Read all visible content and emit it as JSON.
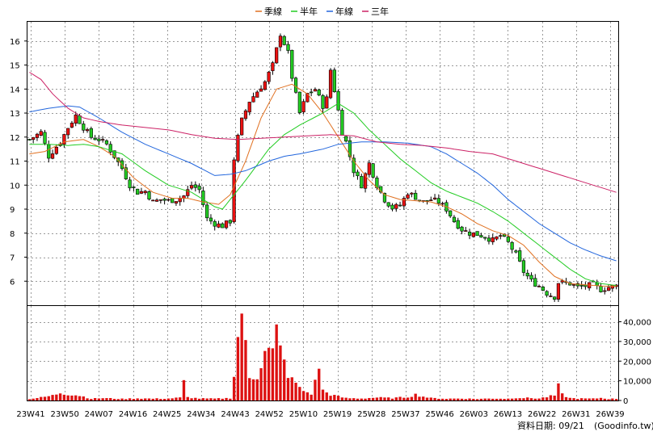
{
  "chart_data": {
    "type": "candlestick",
    "legend": [
      {
        "name": "季線",
        "color": "#e07020"
      },
      {
        "name": "半年",
        "color": "#22cc22"
      },
      {
        "name": "年線",
        "color": "#2266dd"
      },
      {
        "name": "三年",
        "color": "#cc2266"
      }
    ],
    "legend_placement": "top-center",
    "grid": true,
    "x_labels": [
      "23W41",
      "23W50",
      "24W07",
      "24W16",
      "24W25",
      "24W34",
      "24W43",
      "24W52",
      "25W10",
      "25W19",
      "25W28",
      "25W37",
      "25W46",
      "26W03",
      "26W13",
      "26W22",
      "26W31",
      "26W39"
    ],
    "price_axis": {
      "ticks": [
        "6",
        "7",
        "8",
        "9",
        "10",
        "11",
        "12",
        "13",
        "14",
        "15",
        "16"
      ],
      "ylim": [
        5,
        16.8
      ]
    },
    "volume_axis": {
      "ticks": [
        "0",
        "10,000",
        "20,000",
        "30,000",
        "40,000"
      ],
      "ylim": [
        0,
        48000
      ]
    },
    "series": [
      {
        "name": "季線",
        "anchors": [
          [
            0,
            11.3
          ],
          [
            4,
            11.4
          ],
          [
            9,
            11.8
          ],
          [
            14,
            11.9
          ],
          [
            18,
            11.6
          ],
          [
            22,
            11.2
          ],
          [
            27,
            10.3
          ],
          [
            32,
            9.7
          ],
          [
            37,
            9.45
          ],
          [
            41,
            9.45
          ],
          [
            45,
            9.3
          ],
          [
            49,
            9.2
          ],
          [
            52,
            9.6
          ],
          [
            56,
            11.0
          ],
          [
            60,
            12.8
          ],
          [
            64,
            14.0
          ],
          [
            68,
            14.2
          ],
          [
            72,
            13.8
          ],
          [
            76,
            13.0
          ],
          [
            80,
            12.0
          ],
          [
            84,
            11.0
          ],
          [
            88,
            10.2
          ],
          [
            92,
            9.6
          ],
          [
            96,
            9.4
          ],
          [
            100,
            9.35
          ],
          [
            104,
            9.3
          ],
          [
            108,
            9.1
          ],
          [
            112,
            8.8
          ],
          [
            116,
            8.4
          ],
          [
            120,
            8.1
          ],
          [
            124,
            7.9
          ],
          [
            128,
            7.5
          ],
          [
            132,
            6.8
          ],
          [
            136,
            6.2
          ],
          [
            140,
            5.9
          ],
          [
            144,
            5.85
          ],
          [
            148,
            5.8
          ],
          [
            152,
            5.78
          ]
        ]
      },
      {
        "name": "半年",
        "anchors": [
          [
            0,
            11.7
          ],
          [
            5,
            11.7
          ],
          [
            10,
            11.65
          ],
          [
            14,
            11.7
          ],
          [
            18,
            11.6
          ],
          [
            24,
            11.3
          ],
          [
            30,
            10.6
          ],
          [
            36,
            10.0
          ],
          [
            42,
            9.7
          ],
          [
            48,
            9.1
          ],
          [
            50,
            9.0
          ],
          [
            56,
            10.2
          ],
          [
            62,
            11.5
          ],
          [
            66,
            12.1
          ],
          [
            70,
            12.5
          ],
          [
            76,
            13.0
          ],
          [
            80,
            13.4
          ],
          [
            84,
            13.0
          ],
          [
            88,
            12.3
          ],
          [
            92,
            11.7
          ],
          [
            96,
            11.1
          ],
          [
            100,
            10.6
          ],
          [
            104,
            10.1
          ],
          [
            108,
            9.75
          ],
          [
            112,
            9.5
          ],
          [
            116,
            9.25
          ],
          [
            120,
            8.9
          ],
          [
            124,
            8.5
          ],
          [
            128,
            8.0
          ],
          [
            132,
            7.5
          ],
          [
            136,
            7.0
          ],
          [
            140,
            6.5
          ],
          [
            144,
            6.1
          ],
          [
            148,
            5.9
          ],
          [
            152,
            5.82
          ]
        ]
      },
      {
        "name": "年線",
        "anchors": [
          [
            0,
            13.05
          ],
          [
            5,
            13.2
          ],
          [
            10,
            13.3
          ],
          [
            13,
            13.25
          ],
          [
            18,
            12.8
          ],
          [
            24,
            12.2
          ],
          [
            30,
            11.7
          ],
          [
            36,
            11.3
          ],
          [
            42,
            10.9
          ],
          [
            48,
            10.4
          ],
          [
            52,
            10.45
          ],
          [
            56,
            10.6
          ],
          [
            62,
            11.0
          ],
          [
            66,
            11.2
          ],
          [
            70,
            11.3
          ],
          [
            76,
            11.5
          ],
          [
            80,
            11.7
          ],
          [
            86,
            11.8
          ],
          [
            92,
            11.8
          ],
          [
            98,
            11.75
          ],
          [
            104,
            11.6
          ],
          [
            108,
            11.3
          ],
          [
            112,
            10.9
          ],
          [
            116,
            10.5
          ],
          [
            120,
            10.0
          ],
          [
            124,
            9.4
          ],
          [
            128,
            8.9
          ],
          [
            132,
            8.4
          ],
          [
            136,
            8.0
          ],
          [
            140,
            7.6
          ],
          [
            144,
            7.3
          ],
          [
            148,
            7.05
          ],
          [
            152,
            6.85
          ]
        ]
      },
      {
        "name": "三年",
        "anchors": [
          [
            0,
            14.7
          ],
          [
            3,
            14.4
          ],
          [
            6,
            13.8
          ],
          [
            10,
            13.2
          ],
          [
            14,
            12.8
          ],
          [
            18,
            12.65
          ],
          [
            24,
            12.5
          ],
          [
            30,
            12.4
          ],
          [
            36,
            12.3
          ],
          [
            42,
            12.1
          ],
          [
            48,
            11.95
          ],
          [
            54,
            11.9
          ],
          [
            60,
            11.95
          ],
          [
            66,
            12.0
          ],
          [
            72,
            12.05
          ],
          [
            78,
            12.1
          ],
          [
            84,
            12.05
          ],
          [
            90,
            11.8
          ],
          [
            96,
            11.7
          ],
          [
            102,
            11.65
          ],
          [
            108,
            11.55
          ],
          [
            114,
            11.4
          ],
          [
            120,
            11.3
          ],
          [
            126,
            11.0
          ],
          [
            132,
            10.7
          ],
          [
            138,
            10.4
          ],
          [
            144,
            10.1
          ],
          [
            148,
            9.9
          ],
          [
            152,
            9.7
          ]
        ]
      }
    ],
    "price_anchors": [
      [
        0,
        11.9
      ],
      [
        3,
        12.2
      ],
      [
        5,
        11.2
      ],
      [
        8,
        11.8
      ],
      [
        10,
        12.4
      ],
      [
        12,
        12.9
      ],
      [
        14,
        12.4
      ],
      [
        16,
        12.0
      ],
      [
        18,
        11.9
      ],
      [
        20,
        11.7
      ],
      [
        22,
        11.2
      ],
      [
        24,
        10.7
      ],
      [
        26,
        10.0
      ],
      [
        28,
        9.7
      ],
      [
        30,
        9.75
      ],
      [
        32,
        9.3
      ],
      [
        34,
        9.4
      ],
      [
        36,
        9.35
      ],
      [
        38,
        9.4
      ],
      [
        40,
        9.55
      ],
      [
        42,
        10.0
      ],
      [
        44,
        9.8
      ],
      [
        46,
        8.6
      ],
      [
        48,
        8.4
      ],
      [
        50,
        8.3
      ],
      [
        52,
        8.5
      ],
      [
        53,
        11.1
      ],
      [
        54,
        12.0
      ],
      [
        55,
        12.7
      ],
      [
        57,
        13.5
      ],
      [
        59,
        13.9
      ],
      [
        61,
        14.3
      ],
      [
        63,
        15.0
      ],
      [
        65,
        16.3
      ],
      [
        67,
        15.5
      ],
      [
        68,
        14.5
      ],
      [
        70,
        13.0
      ],
      [
        72,
        13.8
      ],
      [
        74,
        14.0
      ],
      [
        76,
        13.3
      ],
      [
        77,
        13.6
      ],
      [
        78,
        14.8
      ],
      [
        80,
        13.1
      ],
      [
        81,
        12.2
      ],
      [
        82,
        11.8
      ],
      [
        84,
        10.6
      ],
      [
        86,
        10.0
      ],
      [
        88,
        10.9
      ],
      [
        90,
        10.0
      ],
      [
        92,
        9.4
      ],
      [
        94,
        9.05
      ],
      [
        96,
        9.15
      ],
      [
        98,
        9.7
      ],
      [
        100,
        9.5
      ],
      [
        102,
        9.3
      ],
      [
        104,
        9.4
      ],
      [
        106,
        9.3
      ],
      [
        108,
        9.0
      ],
      [
        110,
        8.5
      ],
      [
        112,
        8.15
      ],
      [
        114,
        8.0
      ],
      [
        116,
        7.95
      ],
      [
        118,
        7.85
      ],
      [
        120,
        7.7
      ],
      [
        122,
        7.9
      ],
      [
        124,
        7.6
      ],
      [
        126,
        7.1
      ],
      [
        128,
        6.4
      ],
      [
        130,
        6.0
      ],
      [
        132,
        5.8
      ],
      [
        134,
        5.5
      ],
      [
        136,
        5.35
      ],
      [
        137,
        5.95
      ],
      [
        140,
        5.9
      ],
      [
        142,
        5.75
      ],
      [
        144,
        5.8
      ],
      [
        146,
        5.85
      ],
      [
        148,
        5.65
      ],
      [
        150,
        5.75
      ],
      [
        152,
        5.8
      ]
    ],
    "volume_anchors": [
      [
        0,
        800
      ],
      [
        3,
        1500
      ],
      [
        6,
        2500
      ],
      [
        8,
        4000
      ],
      [
        10,
        3200
      ],
      [
        13,
        2500
      ],
      [
        16,
        900
      ],
      [
        19,
        1200
      ],
      [
        24,
        800
      ],
      [
        28,
        1100
      ],
      [
        32,
        900
      ],
      [
        36,
        1000
      ],
      [
        39,
        1400
      ],
      [
        40,
        9000
      ],
      [
        41,
        1600
      ],
      [
        44,
        1000
      ],
      [
        48,
        900
      ],
      [
        52,
        1200
      ],
      [
        53,
        13000
      ],
      [
        54,
        31000
      ],
      [
        55,
        48000
      ],
      [
        56,
        26000
      ],
      [
        57,
        11000
      ],
      [
        59,
        13000
      ],
      [
        60,
        20000
      ],
      [
        61,
        28000
      ],
      [
        62,
        25000
      ],
      [
        63,
        24000
      ],
      [
        64,
        34000
      ],
      [
        65,
        25000
      ],
      [
        66,
        19000
      ],
      [
        67,
        14000
      ],
      [
        68,
        10000
      ],
      [
        69,
        9000
      ],
      [
        70,
        6000
      ],
      [
        71,
        5000
      ],
      [
        72,
        4000
      ],
      [
        73,
        3500
      ],
      [
        74,
        9000
      ],
      [
        75,
        18000
      ],
      [
        76,
        5000
      ],
      [
        78,
        3000
      ],
      [
        80,
        2000
      ],
      [
        82,
        1200
      ],
      [
        86,
        1000
      ],
      [
        90,
        1500
      ],
      [
        94,
        1200
      ],
      [
        98,
        1800
      ],
      [
        100,
        3000
      ],
      [
        102,
        2000
      ],
      [
        104,
        1200
      ],
      [
        108,
        900
      ],
      [
        112,
        1000
      ],
      [
        116,
        800
      ],
      [
        120,
        1000
      ],
      [
        124,
        900
      ],
      [
        126,
        1400
      ],
      [
        128,
        1300
      ],
      [
        130,
        1200
      ],
      [
        132,
        1000
      ],
      [
        134,
        1800
      ],
      [
        136,
        2500
      ],
      [
        137,
        7000
      ],
      [
        138,
        3000
      ],
      [
        140,
        1200
      ],
      [
        142,
        1000
      ],
      [
        146,
        900
      ],
      [
        148,
        1300
      ],
      [
        150,
        800
      ],
      [
        152,
        900
      ]
    ],
    "bar_count": 153
  },
  "footer": {
    "label": "資料日期: 09/21",
    "source": "(Goodinfo.tw)"
  }
}
